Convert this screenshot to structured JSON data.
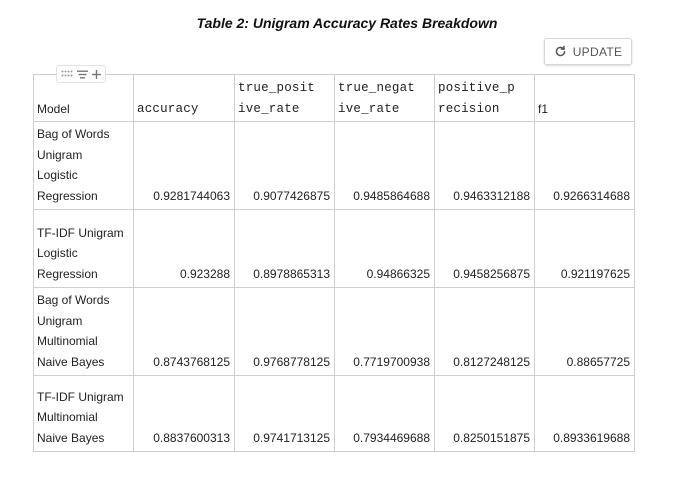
{
  "title": "Table 2:  Unigram Accuracy Rates Breakdown",
  "update_button": {
    "label": "UPDATE",
    "icon": "refresh-icon"
  },
  "toolbar": {
    "icons": [
      "drag-handle-icon",
      "filter-icon",
      "add-icon"
    ]
  },
  "table": {
    "headers": {
      "model": "Model",
      "accuracy": "accuracy",
      "tpr_line1": "true_posit",
      "tpr_line2": "ive_rate",
      "tnr_line1": "true_negat",
      "tnr_line2": "ive_rate",
      "pp_line1": "positive_p",
      "pp_line2": "recision",
      "f1": "f1"
    },
    "rows": [
      {
        "model_lines": [
          "Bag of Words",
          "Unigram",
          "Logistic",
          "Regression"
        ],
        "accuracy": "0.9281744063",
        "true_positive_rate": "0.9077426875",
        "true_negative_rate": "0.9485864688",
        "positive_precision": "0.9463312188",
        "f1": "0.9266314688"
      },
      {
        "model_lines": [
          "TF-IDF Unigram",
          "Logistic",
          "Regression"
        ],
        "accuracy": "0.923288",
        "true_positive_rate": "0.8978865313",
        "true_negative_rate": "0.94866325",
        "positive_precision": "0.9458256875",
        "f1": "0.921197625"
      },
      {
        "model_lines": [
          "Bag of Words",
          "Unigram",
          "Multinomial",
          "Naive Bayes"
        ],
        "accuracy": "0.8743768125",
        "true_positive_rate": "0.9768778125",
        "true_negative_rate": "0.7719700938",
        "positive_precision": "0.8127248125",
        "f1": "0.88657725"
      },
      {
        "model_lines": [
          "TF-IDF Unigram",
          "Multinomial",
          "Naive Bayes"
        ],
        "accuracy": "0.8837600313",
        "true_positive_rate": "0.9741713125",
        "true_negative_rate": "0.7934469688",
        "positive_precision": "0.8250151875",
        "f1": "0.8933619688"
      }
    ]
  }
}
